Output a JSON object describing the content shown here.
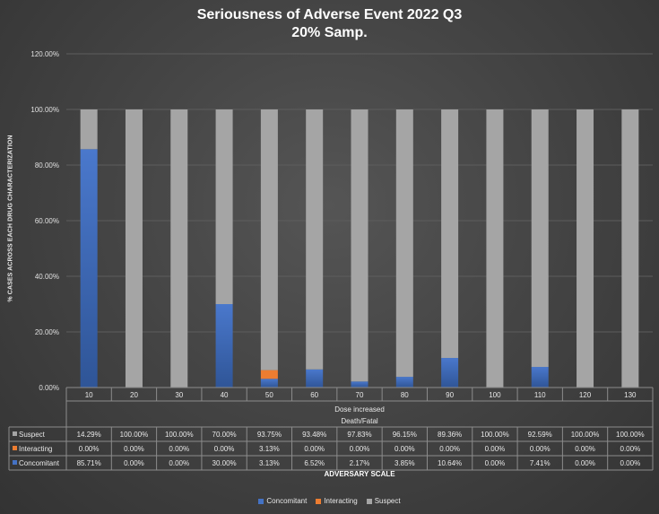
{
  "chart_data": {
    "type": "bar",
    "stacked": true,
    "title": "Seriousness of Adverse Event 2022 Q3",
    "subtitle": "20% Samp.",
    "ylabel": "% CASES ACROSS EACH DRUG CHARACTERIZATION",
    "xlabel": "ADVERSARY SCALE",
    "ylim": [
      0,
      120
    ],
    "yticks": [
      "0.00%",
      "20.00%",
      "40.00%",
      "60.00%",
      "80.00%",
      "100.00%",
      "120.00%"
    ],
    "categories": [
      "10",
      "20",
      "30",
      "40",
      "50",
      "60",
      "70",
      "80",
      "90",
      "100",
      "110",
      "120",
      "130"
    ],
    "group_labels": [
      "Dose increased",
      "Death/Fatal"
    ],
    "series": [
      {
        "name": "Concomitant",
        "color": "#4472c4",
        "values": [
          85.71,
          0,
          0,
          30.0,
          3.13,
          6.52,
          2.17,
          3.85,
          10.64,
          0,
          7.41,
          0,
          0
        ],
        "labels": [
          "85.71%",
          "0.00%",
          "0.00%",
          "30.00%",
          "3.13%",
          "6.52%",
          "2.17%",
          "3.85%",
          "10.64%",
          "0.00%",
          "7.41%",
          "0.00%",
          "0.00%"
        ]
      },
      {
        "name": "Interacting",
        "color": "#ed7d31",
        "values": [
          0,
          0,
          0,
          0,
          3.13,
          0,
          0,
          0,
          0,
          0,
          0,
          0,
          0
        ],
        "labels": [
          "0.00%",
          "0.00%",
          "0.00%",
          "0.00%",
          "3.13%",
          "0.00%",
          "0.00%",
          "0.00%",
          "0.00%",
          "0.00%",
          "0.00%",
          "0.00%",
          "0.00%"
        ]
      },
      {
        "name": "Suspect",
        "color": "#a5a5a5",
        "values": [
          14.29,
          100,
          100,
          70.0,
          93.75,
          93.48,
          97.83,
          96.15,
          89.36,
          100,
          92.59,
          100,
          100
        ],
        "labels": [
          "14.29%",
          "100.00%",
          "100.00%",
          "70.00%",
          "93.75%",
          "93.48%",
          "97.83%",
          "96.15%",
          "89.36%",
          "100.00%",
          "92.59%",
          "100.00%",
          "100.00%"
        ]
      }
    ],
    "table_row_order": [
      "Suspect",
      "Interacting",
      "Concomitant"
    ],
    "legend_order": [
      "Concomitant",
      "Interacting",
      "Suspect"
    ],
    "legend": "bottom"
  }
}
